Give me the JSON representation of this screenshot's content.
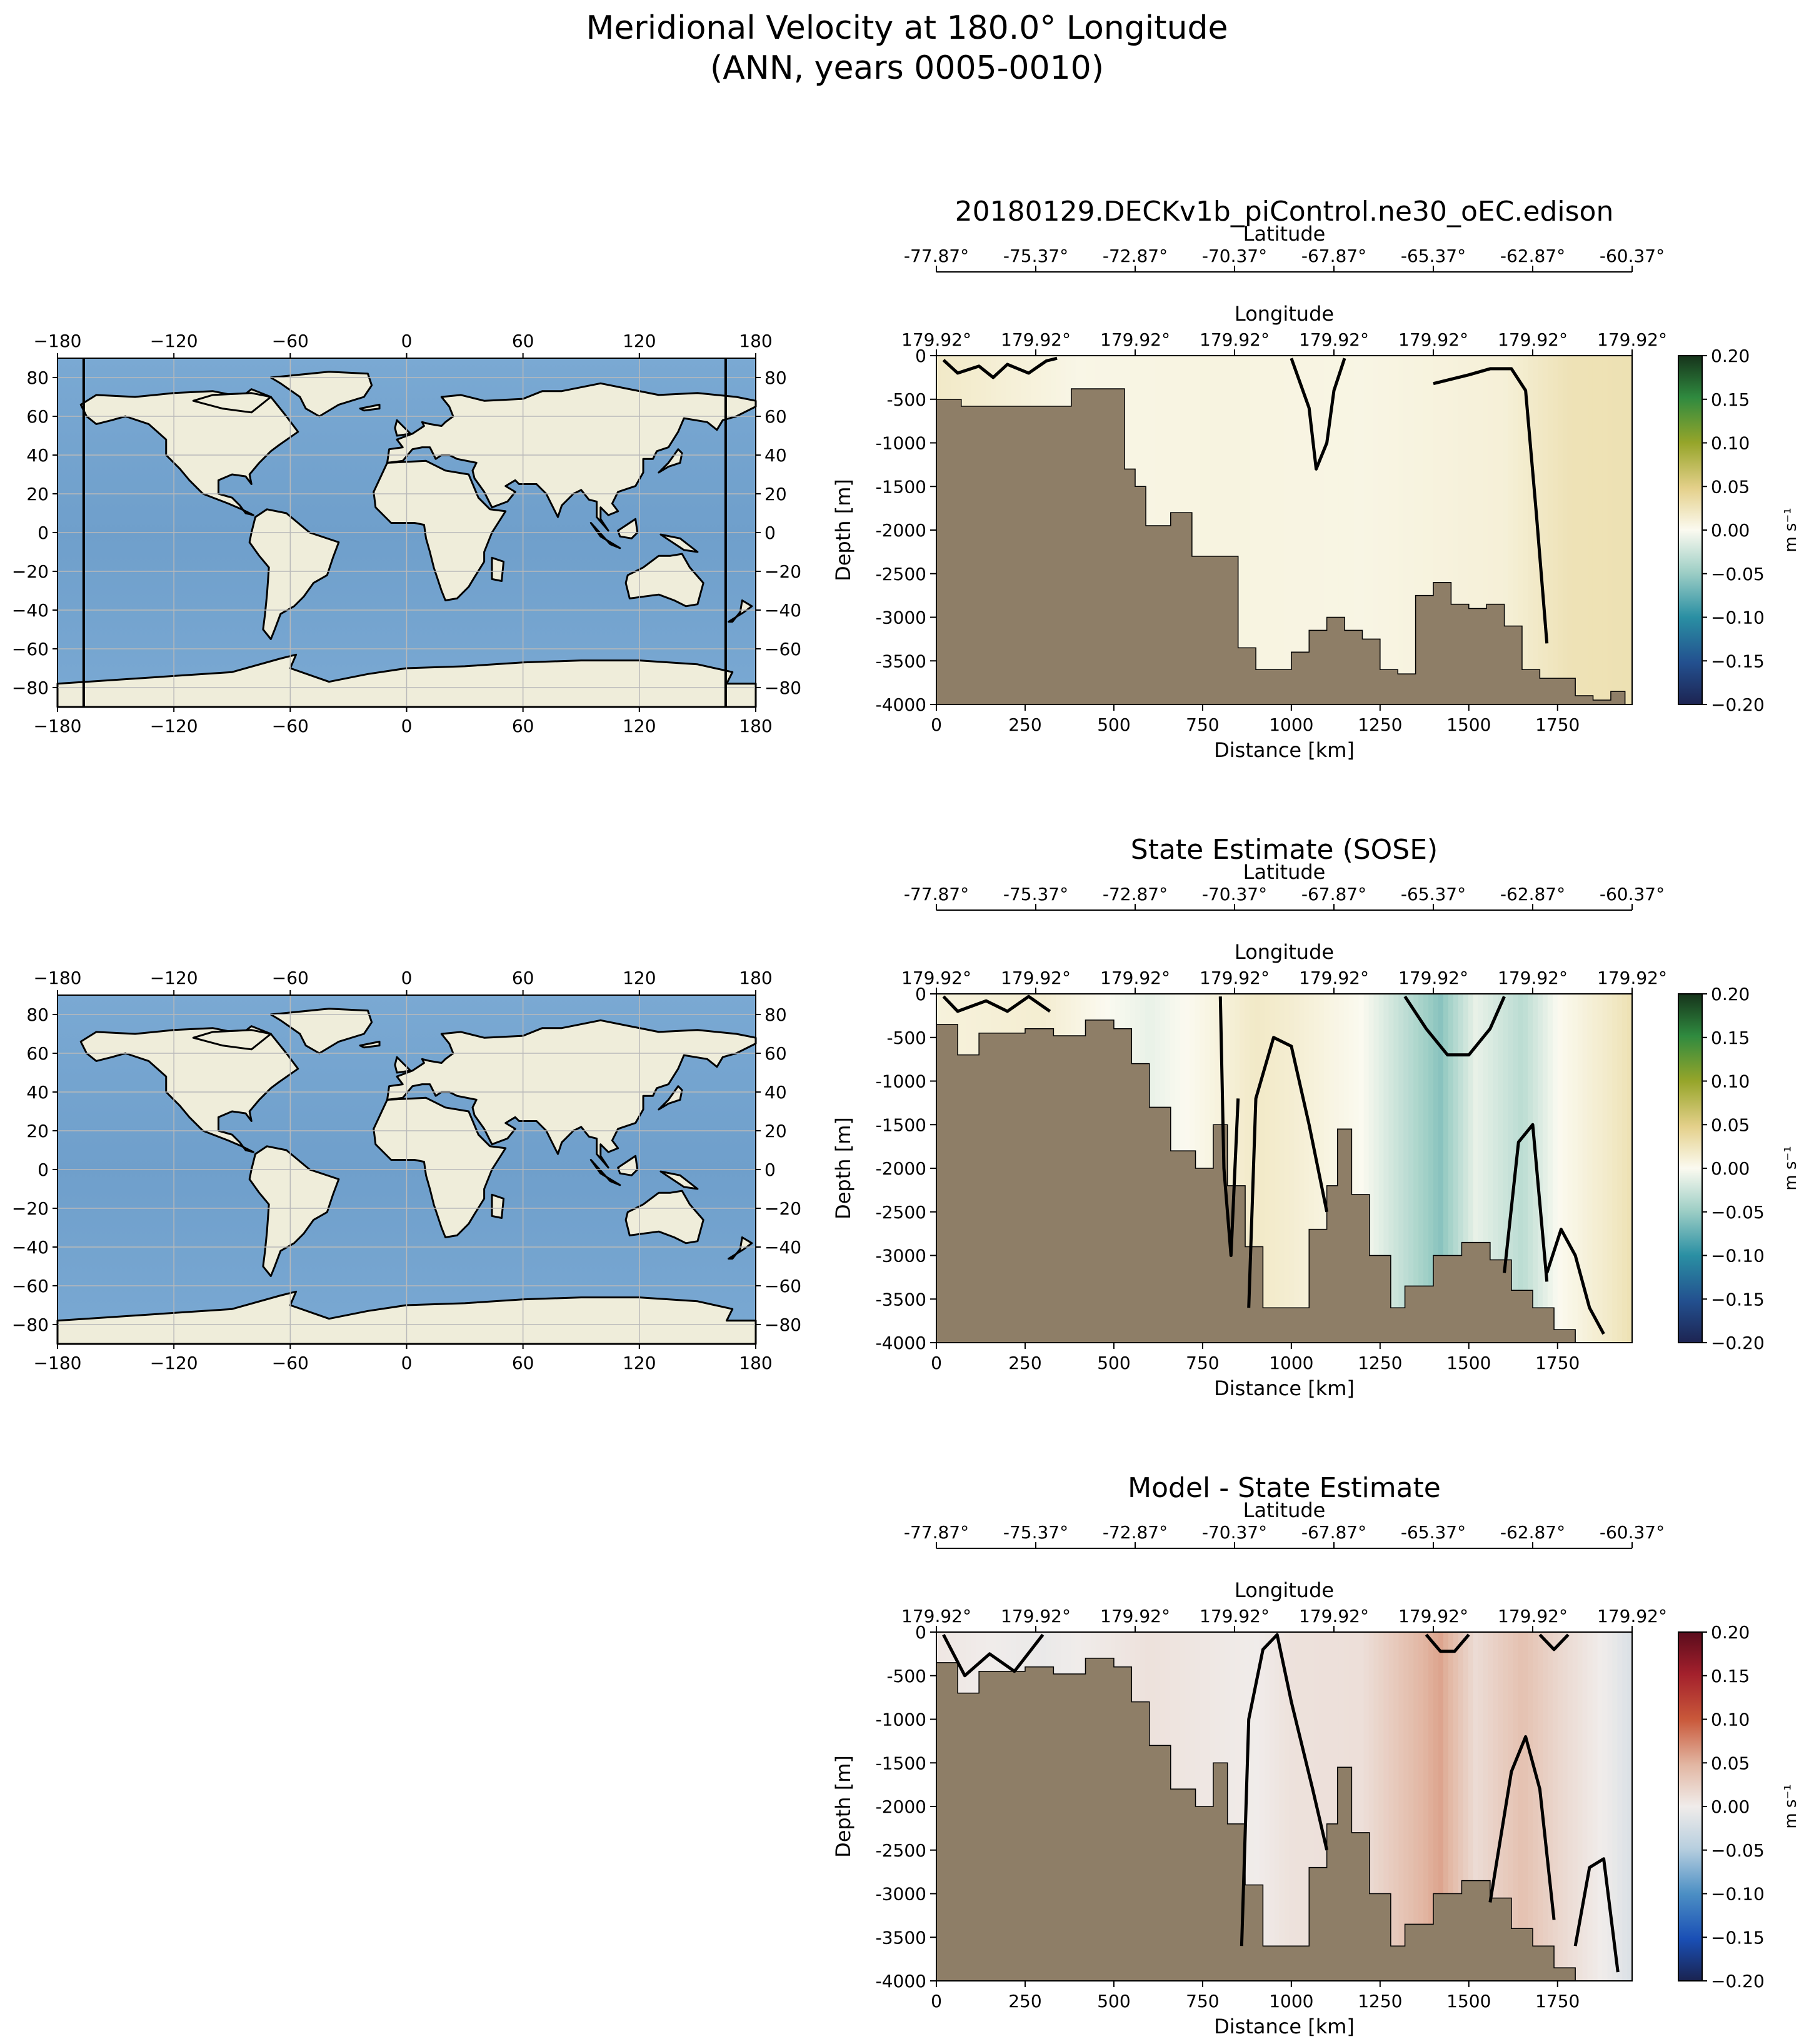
{
  "figure": {
    "title_line1": "Meridional Velocity at 180.0° Longitude",
    "title_line2": "(ANN, years 0005-0010)"
  },
  "chart_data": [
    {
      "type": "heatmap",
      "id": "model",
      "title": "20180129.DECKv1b_piControl.ne30_oEC.edison",
      "xlabel": "Distance [km]",
      "ylabel": "Depth [m]",
      "xlim": [
        0,
        1960
      ],
      "ylim": [
        -4000,
        0
      ],
      "xticks": [
        0,
        250,
        500,
        750,
        1000,
        1250,
        1500,
        1750
      ],
      "yticks": [
        0,
        -500,
        -1000,
        -1500,
        -2000,
        -2500,
        -3000,
        -3500,
        -4000
      ],
      "latitude_label": "Latitude",
      "latitude_ticks": [
        "-77.87°",
        "-75.37°",
        "-72.87°",
        "-70.37°",
        "-67.87°",
        "-65.37°",
        "-62.87°",
        "-60.37°"
      ],
      "longitude_label": "Longitude",
      "longitude_ticks": [
        "179.92°",
        "179.92°",
        "179.92°",
        "179.92°",
        "179.92°",
        "179.92°",
        "179.92°",
        "179.92°"
      ],
      "colormap": "yellow-green",
      "colorbar": {
        "label": "m s⁻¹",
        "ticks": [
          "0.20",
          "0.15",
          "0.10",
          "0.05",
          "0.00",
          "−0.05",
          "−0.10",
          "−0.15",
          "−0.20"
        ]
      },
      "field_profile": {
        "x_km": [
          0,
          400,
          800,
          1200,
          1600,
          1780,
          1960
        ],
        "value": [
          0.02,
          0.005,
          0.008,
          0.006,
          0.012,
          0.028,
          0.03
        ]
      },
      "bathymetry": {
        "x_km": [
          20,
          70,
          380,
          530,
          560,
          590,
          660,
          720,
          800,
          850,
          900,
          950,
          1000,
          1050,
          1100,
          1150,
          1200,
          1250,
          1300,
          1350,
          1400,
          1450,
          1500,
          1550,
          1600,
          1650,
          1700,
          1750,
          1800,
          1850,
          1900,
          1940,
          1960
        ],
        "depth_m": [
          -500,
          -580,
          -380,
          -1300,
          -1500,
          -1950,
          -1800,
          -2300,
          -2300,
          -3350,
          -3600,
          -3600,
          -3400,
          -3150,
          -3000,
          -3150,
          -3250,
          -3600,
          -3650,
          -2750,
          -2600,
          -2850,
          -2900,
          -2850,
          -3100,
          -3600,
          -3700,
          -3700,
          -3900,
          -3950,
          -3850,
          -4000,
          -4000
        ]
      },
      "contours": [
        {
          "x_km": [
            20,
            60,
            120,
            160,
            200,
            260,
            310,
            340
          ],
          "depth_m": [
            -50,
            -200,
            -120,
            -250,
            -100,
            -200,
            -60,
            -30
          ]
        },
        {
          "x_km": [
            1000,
            1050,
            1070,
            1100,
            1120,
            1150
          ],
          "depth_m": [
            -30,
            -600,
            -1300,
            -1000,
            -400,
            -30
          ]
        },
        {
          "x_km": [
            1400,
            1500,
            1560,
            1620,
            1660,
            1690,
            1720
          ],
          "depth_m": [
            -320,
            -220,
            -150,
            -150,
            -400,
            -1800,
            -3300
          ]
        }
      ]
    },
    {
      "type": "heatmap",
      "id": "sose",
      "title": "State Estimate (SOSE)",
      "xlabel": "Distance [km]",
      "ylabel": "Depth [m]",
      "xlim": [
        0,
        1960
      ],
      "ylim": [
        -4000,
        0
      ],
      "xticks": [
        0,
        250,
        500,
        750,
        1000,
        1250,
        1500,
        1750
      ],
      "yticks": [
        0,
        -500,
        -1000,
        -1500,
        -2000,
        -2500,
        -3000,
        -3500,
        -4000
      ],
      "latitude_label": "Latitude",
      "latitude_ticks": [
        "-77.87°",
        "-75.37°",
        "-72.87°",
        "-70.37°",
        "-67.87°",
        "-65.37°",
        "-62.87°",
        "-60.37°"
      ],
      "longitude_label": "Longitude",
      "longitude_ticks": [
        "179.92°",
        "179.92°",
        "179.92°",
        "179.92°",
        "179.92°",
        "179.92°",
        "179.92°",
        "179.92°"
      ],
      "colormap": "yellow-green",
      "colorbar": {
        "label": "m s⁻¹",
        "ticks": [
          "0.20",
          "0.15",
          "0.10",
          "0.05",
          "0.00",
          "−0.05",
          "−0.10",
          "−0.15",
          "−0.20"
        ]
      },
      "field_profile": {
        "x_km": [
          0,
          300,
          600,
          900,
          1000,
          1200,
          1420,
          1520,
          1650,
          1750,
          1900,
          1960
        ],
        "value": [
          0.01,
          0.015,
          -0.01,
          0.02,
          0.015,
          0.0,
          -0.06,
          -0.01,
          -0.035,
          0.0,
          0.02,
          0.03
        ]
      },
      "bathymetry": {
        "x_km": [
          20,
          60,
          120,
          250,
          330,
          420,
          500,
          550,
          600,
          660,
          730,
          780,
          820,
          870,
          920,
          1000,
          1050,
          1100,
          1130,
          1170,
          1220,
          1280,
          1320,
          1360,
          1400,
          1480,
          1560,
          1620,
          1680,
          1740,
          1800,
          1960
        ],
        "depth_m": [
          -350,
          -700,
          -450,
          -400,
          -480,
          -300,
          -400,
          -800,
          -1300,
          -1800,
          -2000,
          -1500,
          -2200,
          -2900,
          -3600,
          -3600,
          -2700,
          -2200,
          -1550,
          -2300,
          -3000,
          -3600,
          -3350,
          -3350,
          -3000,
          -2850,
          -3050,
          -3400,
          -3600,
          -3850,
          -4000,
          -4000
        ]
      },
      "contours": [
        {
          "x_km": [
            20,
            60,
            140,
            200,
            260,
            320
          ],
          "depth_m": [
            -30,
            -200,
            -80,
            -200,
            -30,
            -200
          ]
        },
        {
          "x_km": [
            800,
            810,
            830,
            850
          ],
          "depth_m": [
            -30,
            -2000,
            -3000,
            -1200
          ]
        },
        {
          "x_km": [
            880,
            900,
            950,
            1000,
            1050,
            1100
          ],
          "depth_m": [
            -3600,
            -1200,
            -500,
            -600,
            -1500,
            -2500
          ]
        },
        {
          "x_km": [
            1320,
            1380,
            1440,
            1500,
            1560,
            1600
          ],
          "depth_m": [
            -30,
            -400,
            -700,
            -700,
            -400,
            -30
          ]
        },
        {
          "x_km": [
            1600,
            1640,
            1680,
            1720
          ],
          "depth_m": [
            -3200,
            -1700,
            -1500,
            -3300
          ]
        },
        {
          "x_km": [
            1720,
            1760,
            1800,
            1840,
            1880
          ],
          "depth_m": [
            -3200,
            -2700,
            -3000,
            -3600,
            -3900
          ]
        }
      ]
    },
    {
      "type": "heatmap",
      "id": "difference",
      "title": "Model - State Estimate",
      "xlabel": "Distance [km]",
      "ylabel": "Depth [m]",
      "xlim": [
        0,
        1960
      ],
      "ylim": [
        -4000,
        0
      ],
      "xticks": [
        0,
        250,
        500,
        750,
        1000,
        1250,
        1500,
        1750
      ],
      "yticks": [
        0,
        -500,
        -1000,
        -1500,
        -2000,
        -2500,
        -3000,
        -3500,
        -4000
      ],
      "latitude_label": "Latitude",
      "latitude_ticks": [
        "-77.87°",
        "-75.37°",
        "-72.87°",
        "-70.37°",
        "-67.87°",
        "-65.37°",
        "-62.87°",
        "-60.37°"
      ],
      "longitude_label": "Longitude",
      "longitude_ticks": [
        "179.92°",
        "179.92°",
        "179.92°",
        "179.92°",
        "179.92°",
        "179.92°",
        "179.92°",
        "179.92°"
      ],
      "colormap": "blue-red",
      "colorbar": {
        "label": "m s⁻¹",
        "ticks": [
          "0.20",
          "0.15",
          "0.10",
          "0.05",
          "0.00",
          "−0.05",
          "−0.10",
          "−0.15",
          "−0.20"
        ]
      },
      "field_profile": {
        "x_km": [
          0,
          300,
          600,
          900,
          1000,
          1200,
          1420,
          1520,
          1650,
          1750,
          1900,
          1960
        ],
        "value": [
          0.005,
          -0.005,
          0.01,
          0.0,
          0.01,
          0.012,
          0.06,
          0.015,
          0.04,
          0.02,
          -0.005,
          -0.02
        ]
      },
      "bathymetry": {
        "x_km": [
          20,
          60,
          120,
          250,
          330,
          420,
          500,
          550,
          600,
          660,
          730,
          780,
          820,
          870,
          920,
          1000,
          1050,
          1100,
          1130,
          1170,
          1220,
          1280,
          1320,
          1360,
          1400,
          1480,
          1560,
          1620,
          1680,
          1740,
          1800,
          1960
        ],
        "depth_m": [
          -350,
          -700,
          -450,
          -400,
          -480,
          -300,
          -400,
          -800,
          -1300,
          -1800,
          -2000,
          -1500,
          -2200,
          -2900,
          -3600,
          -3600,
          -2700,
          -2200,
          -1550,
          -2300,
          -3000,
          -3600,
          -3350,
          -3350,
          -3000,
          -2850,
          -3050,
          -3400,
          -3600,
          -3850,
          -4000,
          -4000
        ]
      },
      "contours": [
        {
          "x_km": [
            20,
            80,
            150,
            220,
            300
          ],
          "depth_m": [
            -30,
            -500,
            -250,
            -450,
            -30
          ]
        },
        {
          "x_km": [
            860,
            880,
            920,
            960,
            1000,
            1060,
            1100
          ],
          "depth_m": [
            -3600,
            -1000,
            -200,
            -30,
            -800,
            -1800,
            -2500
          ]
        },
        {
          "x_km": [
            1380,
            1420,
            1460,
            1500
          ],
          "depth_m": [
            -30,
            -220,
            -220,
            -30
          ]
        },
        {
          "x_km": [
            1700,
            1740,
            1780
          ],
          "depth_m": [
            -30,
            -200,
            -30
          ]
        },
        {
          "x_km": [
            1560,
            1620,
            1660,
            1700,
            1740
          ],
          "depth_m": [
            -3100,
            -1600,
            -1200,
            -1800,
            -3300
          ]
        },
        {
          "x_km": [
            1800,
            1840,
            1880,
            1920
          ],
          "depth_m": [
            -3600,
            -2700,
            -2600,
            -3900
          ]
        }
      ]
    },
    {
      "type": "map",
      "id": "map1",
      "xticks": [
        "−180",
        "−120",
        "−60",
        "0",
        "60",
        "120",
        "180"
      ],
      "yticks": [
        "80",
        "60",
        "40",
        "20",
        "0",
        "−20",
        "−40",
        "−60",
        "−80"
      ],
      "lon_range": [
        -180,
        180
      ],
      "lat_range": [
        -90,
        90
      ],
      "transect_lons": [
        -166.5,
        164.5
      ]
    },
    {
      "type": "map",
      "id": "map2",
      "xticks": [
        "−180",
        "−120",
        "−60",
        "0",
        "60",
        "120",
        "180"
      ],
      "yticks": [
        "80",
        "60",
        "40",
        "20",
        "0",
        "−20",
        "−40",
        "−60",
        "−80"
      ],
      "lon_range": [
        -180,
        180
      ],
      "lat_range": [
        -90,
        90
      ],
      "transect_lons": []
    }
  ]
}
